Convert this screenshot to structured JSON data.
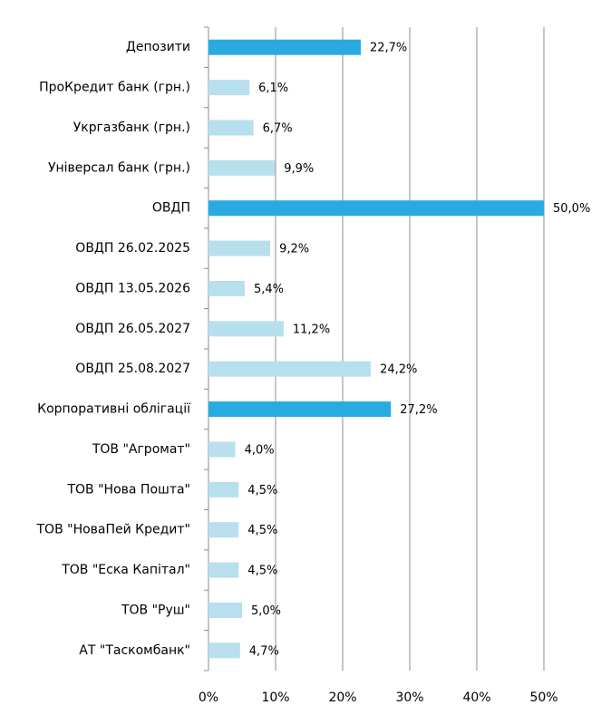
{
  "chart_data": {
    "type": "barh",
    "categories": [
      "Депозити",
      "ПроКредит банк (грн.)",
      "Укргазбанк (грн.)",
      "Універсал банк (грн.)",
      "ОВДП",
      "ОВДП 26.02.2025",
      "ОВДП 13.05.2026",
      "ОВДП 26.05.2027",
      "ОВДП 25.08.2027",
      "Корпоративні облігації",
      "ТОВ \"Агромат\"",
      "ТОВ \"Нова Пошта\"",
      "ТОВ \"НоваПей Кредит\"",
      "ТОВ \"Еска Капітал\"",
      "ТОВ \"Руш\"",
      "АТ \"Таскомбанк\""
    ],
    "values": [
      22.7,
      6.1,
      6.7,
      9.9,
      50.0,
      9.2,
      5.4,
      11.2,
      24.2,
      27.2,
      4.0,
      4.5,
      4.5,
      4.5,
      5.0,
      4.7
    ],
    "value_labels": [
      "22,7%",
      "6,1%",
      "6,7%",
      "9,9%",
      "50,0%",
      "9,2%",
      "5,4%",
      "11,2%",
      "24,2%",
      "27,2%",
      "4,0%",
      "4,5%",
      "4,5%",
      "4,5%",
      "5,0%",
      "4,7%"
    ],
    "colors": [
      "#29abe2",
      "#b7dfee",
      "#b7dfee",
      "#b7dfee",
      "#29abe2",
      "#b7dfee",
      "#b7dfee",
      "#b7dfee",
      "#b7dfee",
      "#29abe2",
      "#b7dfee",
      "#b7dfee",
      "#b7dfee",
      "#b7dfee",
      "#b7dfee",
      "#b7dfee"
    ],
    "xlim": [
      0,
      50
    ],
    "xticks": [
      {
        "value": 0,
        "label": "0%"
      },
      {
        "value": 10,
        "label": "10%"
      },
      {
        "value": 20,
        "label": "20%"
      },
      {
        "value": 30,
        "label": "30%"
      },
      {
        "value": 40,
        "label": "40%"
      },
      {
        "value": 50,
        "label": "50%"
      }
    ],
    "grid": true
  }
}
